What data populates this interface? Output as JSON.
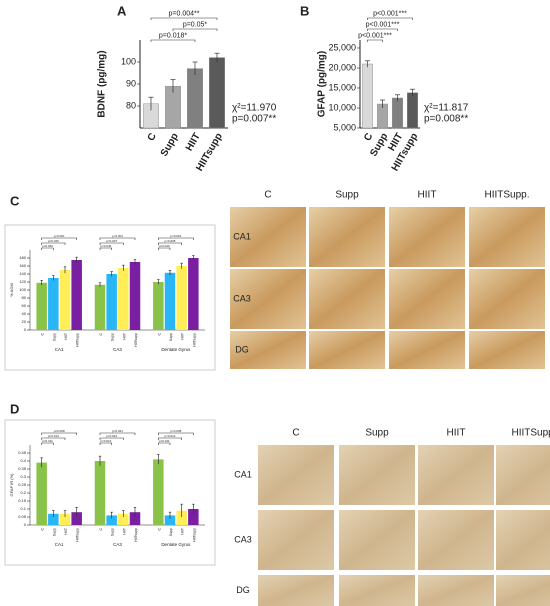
{
  "panel_labels": [
    "A",
    "B",
    "C",
    "D"
  ],
  "chart_data": [
    {
      "type": "bar",
      "categories": [
        "C",
        "Supp",
        "HIIT",
        "HIITsupp"
      ],
      "values": [
        81,
        89,
        97,
        102
      ],
      "errors": [
        3,
        3,
        3,
        2
      ],
      "colors": [
        "#d9d9d9",
        "#a6a6a6",
        "#808080",
        "#5a5a5a"
      ],
      "y_label": "BDNF (pg/mg)",
      "ylim": [
        70,
        110
      ],
      "yticks": [
        80,
        90,
        100
      ],
      "annotations": [
        "p=0.004**",
        "p=0.05*",
        "p=0.018*"
      ],
      "stats": [
        "χ²=11.970",
        "p=0.007**"
      ]
    },
    {
      "type": "bar",
      "categories": [
        "C",
        "Supp",
        "HIIT",
        "HIITsupp"
      ],
      "values": [
        21000,
        11000,
        12500,
        13800
      ],
      "errors": [
        800,
        1000,
        800,
        900
      ],
      "colors": [
        "#d9d9d9",
        "#a6a6a6",
        "#808080",
        "#5a5a5a"
      ],
      "y_label": "GFAP (pg/mg)",
      "ylim": [
        5000,
        27000
      ],
      "yticks": [
        {
          "value": 5000,
          "label": "5,000"
        },
        {
          "value": 10000,
          "label": "10,000"
        },
        {
          "value": 15000,
          "label": "15,000"
        },
        {
          "value": 20000,
          "label": "20,000"
        },
        {
          "value": 25000,
          "label": "25,000"
        }
      ],
      "annotations": [
        "p<0.001***",
        "p<0.001***",
        "p<0.001***"
      ],
      "stats": [
        "χ²=11.817",
        "p=0.008**"
      ]
    },
    {
      "type": "grouped_bar",
      "groups": [
        "CA1",
        "CA3",
        "Dentate Gyrus"
      ],
      "y_label": "% AOM",
      "series": [
        {
          "name": "C",
          "color": "#8bc34a",
          "values": [
            118,
            113,
            120
          ],
          "errors": [
            6,
            5,
            6
          ]
        },
        {
          "name": "Supp",
          "color": "#29b6f6",
          "values": [
            130,
            140,
            143
          ],
          "errors": [
            6,
            6,
            6
          ]
        },
        {
          "name": "HIIT",
          "color": "#ffee58",
          "values": [
            150,
            155,
            160
          ],
          "errors": [
            8,
            7,
            7
          ]
        },
        {
          "name": "HIITsupp",
          "color": "#7b1fa2",
          "values": [
            175,
            170,
            180
          ],
          "errors": [
            7,
            6,
            6
          ]
        }
      ],
      "ylim": [
        0,
        200
      ],
      "yticks": [
        0,
        20,
        40,
        60,
        80,
        100,
        120,
        140,
        160,
        180
      ],
      "annotations": [
        [
          "p<0.001",
          "p=0.020",
          "p=0.040"
        ],
        [
          "p<0.001",
          "p=0.007",
          "p=0.040"
        ],
        [
          "p<0.001",
          "p=0.005",
          "p=0.040"
        ]
      ]
    },
    {
      "type": "grouped_bar",
      "groups": [
        "CA1",
        "CA3",
        "Dentate Gyrus"
      ],
      "y_label": "GFAP IR (%)",
      "series": [
        {
          "name": "C",
          "color": "#8bc34a",
          "values": [
            0.39,
            0.4,
            0.41
          ],
          "errors": [
            0.03,
            0.03,
            0.03
          ]
        },
        {
          "name": "Supp",
          "color": "#29b6f6",
          "values": [
            0.07,
            0.06,
            0.06
          ],
          "errors": [
            0.02,
            0.02,
            0.02
          ]
        },
        {
          "name": "HIIT",
          "color": "#ffee58",
          "values": [
            0.07,
            0.07,
            0.09
          ],
          "errors": [
            0.02,
            0.02,
            0.04
          ]
        },
        {
          "name": "HIITsupp",
          "color": "#7b1fa2",
          "values": [
            0.08,
            0.08,
            0.1
          ],
          "errors": [
            0.03,
            0.03,
            0.03
          ]
        }
      ],
      "ylim": [
        0,
        0.5
      ],
      "yticks": [
        0,
        0.05,
        0.1,
        0.15,
        0.2,
        0.25,
        0.3,
        0.35,
        0.4,
        0.45
      ],
      "annotations": [
        [
          "p=0.008",
          "p=0.014",
          "p=0.011"
        ],
        [
          "p=0.021",
          "p=0.024",
          "p=0.013"
        ],
        [
          "p=0.008",
          "p=0.014",
          "p=0.011"
        ]
      ]
    }
  ],
  "micrographs": [
    {
      "columns": [
        "C",
        "Supp",
        "HIIT",
        "HIITSupp."
      ],
      "rows": [
        "CA1",
        "CA3",
        "DG"
      ]
    },
    {
      "columns": [
        "C",
        "Supp",
        "HIIT",
        "HIITSupp."
      ],
      "rows": [
        "CA1",
        "CA3",
        "DG"
      ]
    }
  ]
}
